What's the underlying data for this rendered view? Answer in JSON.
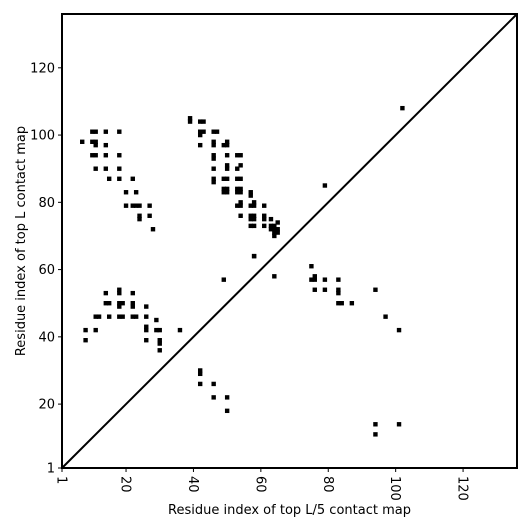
{
  "chart_data": {
    "type": "scatter",
    "xlabel": "Residue index of top L/5 contact map",
    "ylabel": "Residue index of top L contact map",
    "xlim": [
      1,
      136
    ],
    "ylim": [
      1,
      136
    ],
    "xticks": [
      1,
      20,
      40,
      60,
      80,
      100,
      120
    ],
    "yticks": [
      1,
      20,
      40,
      60,
      80,
      100,
      120
    ],
    "x_tick_rotation": 90,
    "grid": false,
    "marker": "square",
    "marker_color": "#000000",
    "diagonal": {
      "from": [
        1,
        1
      ],
      "to": [
        136,
        136
      ],
      "color": "#000000"
    },
    "points": [
      [
        39,
        105
      ],
      [
        39,
        104
      ],
      [
        42,
        104
      ],
      [
        43,
        104
      ],
      [
        42,
        101
      ],
      [
        43,
        101
      ],
      [
        46,
        101
      ],
      [
        47,
        101
      ],
      [
        42,
        100
      ],
      [
        42,
        97
      ],
      [
        46,
        98
      ],
      [
        46,
        97
      ],
      [
        50,
        98
      ],
      [
        49,
        97
      ],
      [
        50,
        97
      ],
      [
        10,
        101
      ],
      [
        11,
        101
      ],
      [
        14,
        101
      ],
      [
        18,
        101
      ],
      [
        7,
        98
      ],
      [
        10,
        98
      ],
      [
        11,
        98
      ],
      [
        11,
        97
      ],
      [
        14,
        97
      ],
      [
        10,
        94
      ],
      [
        11,
        94
      ],
      [
        14,
        94
      ],
      [
        18,
        94
      ],
      [
        11,
        90
      ],
      [
        14,
        90
      ],
      [
        18,
        90
      ],
      [
        15,
        87
      ],
      [
        18,
        87
      ],
      [
        20,
        83
      ],
      [
        23,
        83
      ],
      [
        20,
        79
      ],
      [
        22,
        79
      ],
      [
        23,
        79
      ],
      [
        24,
        79
      ],
      [
        27,
        79
      ],
      [
        22,
        87
      ],
      [
        24,
        76
      ],
      [
        24,
        75
      ],
      [
        27,
        76
      ],
      [
        28,
        72
      ],
      [
        46,
        94
      ],
      [
        46,
        93
      ],
      [
        50,
        94
      ],
      [
        53,
        94
      ],
      [
        54,
        94
      ],
      [
        46,
        90
      ],
      [
        50,
        91
      ],
      [
        50,
        90
      ],
      [
        53,
        90
      ],
      [
        54,
        91
      ],
      [
        46,
        87
      ],
      [
        46,
        86
      ],
      [
        49,
        87
      ],
      [
        50,
        87
      ],
      [
        53,
        87
      ],
      [
        54,
        87
      ],
      [
        49,
        84
      ],
      [
        50,
        84
      ],
      [
        49,
        83
      ],
      [
        50,
        83
      ],
      [
        53,
        84
      ],
      [
        54,
        84
      ],
      [
        53,
        83
      ],
      [
        54,
        83
      ],
      [
        57,
        83
      ],
      [
        57,
        82
      ],
      [
        53,
        79
      ],
      [
        54,
        79
      ],
      [
        54,
        80
      ],
      [
        57,
        79
      ],
      [
        58,
        80
      ],
      [
        58,
        79
      ],
      [
        61,
        79
      ],
      [
        54,
        76
      ],
      [
        57,
        76
      ],
      [
        58,
        76
      ],
      [
        57,
        75
      ],
      [
        58,
        75
      ],
      [
        61,
        76
      ],
      [
        61,
        75
      ],
      [
        63,
        75
      ],
      [
        57,
        73
      ],
      [
        58,
        73
      ],
      [
        61,
        73
      ],
      [
        63,
        73
      ],
      [
        64,
        73
      ],
      [
        63,
        72
      ],
      [
        64,
        72
      ],
      [
        65,
        72
      ],
      [
        64,
        71
      ],
      [
        65,
        71
      ],
      [
        65,
        74
      ],
      [
        64,
        70
      ],
      [
        58,
        64
      ],
      [
        58,
        64
      ],
      [
        79,
        85
      ],
      [
        102,
        108
      ],
      [
        49,
        57
      ],
      [
        64,
        58
      ],
      [
        75,
        61
      ],
      [
        75,
        57
      ],
      [
        76,
        57
      ],
      [
        76,
        58
      ],
      [
        79,
        57
      ],
      [
        76,
        54
      ],
      [
        79,
        54
      ],
      [
        83,
        57
      ],
      [
        83,
        54
      ],
      [
        83,
        53
      ],
      [
        83,
        50
      ],
      [
        84,
        50
      ],
      [
        87,
        50
      ],
      [
        94,
        54
      ],
      [
        97,
        46
      ],
      [
        101,
        42
      ],
      [
        14,
        53
      ],
      [
        18,
        54
      ],
      [
        18,
        53
      ],
      [
        22,
        53
      ],
      [
        14,
        50
      ],
      [
        15,
        50
      ],
      [
        18,
        50
      ],
      [
        19,
        50
      ],
      [
        18,
        49
      ],
      [
        22,
        50
      ],
      [
        22,
        49
      ],
      [
        26,
        49
      ],
      [
        11,
        46
      ],
      [
        12,
        46
      ],
      [
        15,
        46
      ],
      [
        18,
        46
      ],
      [
        19,
        46
      ],
      [
        22,
        46
      ],
      [
        23,
        46
      ],
      [
        26,
        46
      ],
      [
        29,
        45
      ],
      [
        8,
        42
      ],
      [
        11,
        42
      ],
      [
        26,
        43
      ],
      [
        26,
        42
      ],
      [
        29,
        42
      ],
      [
        30,
        42
      ],
      [
        36,
        42
      ],
      [
        8,
        39
      ],
      [
        26,
        39
      ],
      [
        30,
        39
      ],
      [
        30,
        38
      ],
      [
        30,
        36
      ],
      [
        42,
        30
      ],
      [
        42,
        29
      ],
      [
        42,
        26
      ],
      [
        46,
        26
      ],
      [
        46,
        22
      ],
      [
        50,
        22
      ],
      [
        50,
        18
      ],
      [
        94,
        14
      ],
      [
        94,
        11
      ],
      [
        101,
        14
      ]
    ]
  }
}
